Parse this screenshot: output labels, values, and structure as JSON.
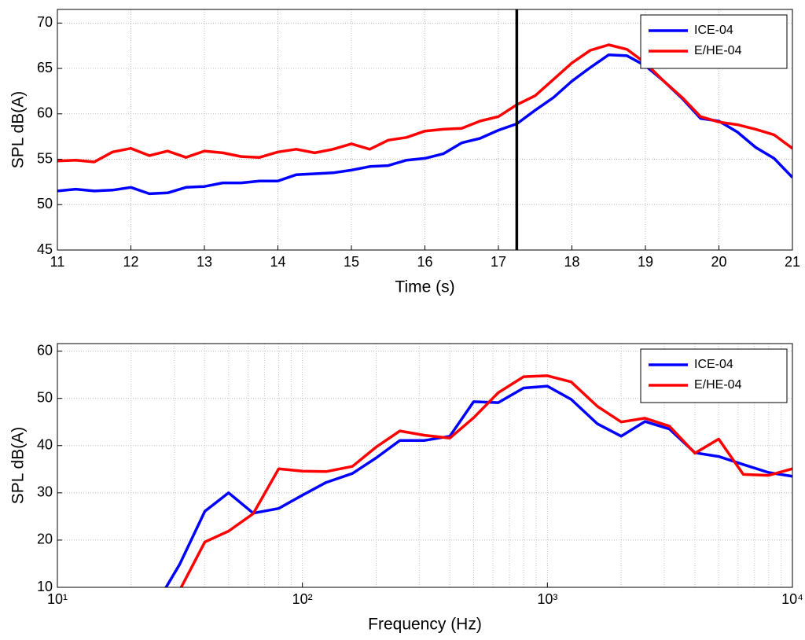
{
  "chart_data": [
    {
      "type": "line",
      "xlabel": "Time (s)",
      "ylabel": "SPL dB(A)",
      "x": [
        11,
        11.25,
        11.5,
        11.75,
        12,
        12.25,
        12.5,
        12.75,
        13,
        13.25,
        13.5,
        13.75,
        14,
        14.25,
        14.5,
        14.75,
        15,
        15.25,
        15.5,
        15.75,
        16,
        16.25,
        16.5,
        16.75,
        17,
        17.25,
        17.5,
        17.75,
        18,
        18.25,
        18.5,
        18.75,
        19,
        19.25,
        19.5,
        19.75,
        20,
        20.25,
        20.5,
        20.75,
        21
      ],
      "series": [
        {
          "name": "ICE-04",
          "color": "#0000ff",
          "values": [
            51.5,
            51.7,
            51.5,
            51.6,
            51.9,
            51.2,
            51.3,
            51.9,
            52.0,
            52.4,
            52.4,
            52.6,
            52.6,
            53.3,
            53.4,
            53.5,
            53.8,
            54.2,
            54.3,
            54.9,
            55.1,
            55.6,
            56.8,
            57.3,
            58.2,
            58.9,
            60.4,
            61.8,
            63.6,
            65.1,
            66.5,
            66.4,
            65.3,
            63.6,
            61.7,
            59.5,
            59.2,
            58.0,
            56.3,
            55.1,
            53.0
          ]
        },
        {
          "name": "E/HE-04",
          "color": "#ff0000",
          "values": [
            54.8,
            54.9,
            54.7,
            55.8,
            56.2,
            55.4,
            55.9,
            55.2,
            55.9,
            55.7,
            55.3,
            55.2,
            55.8,
            56.1,
            55.7,
            56.1,
            56.7,
            56.1,
            57.1,
            57.4,
            58.1,
            58.3,
            58.4,
            59.2,
            59.7,
            61.0,
            62.0,
            63.8,
            65.6,
            67.0,
            67.6,
            67.1,
            65.6,
            63.6,
            61.8,
            59.7,
            59.1,
            58.8,
            58.3,
            57.7,
            56.2
          ]
        }
      ],
      "xlim": [
        11,
        21
      ],
      "xticks": [
        11,
        12,
        13,
        14,
        15,
        16,
        17,
        18,
        19,
        20,
        21
      ],
      "ylim": [
        45,
        71.5
      ],
      "yticks": [
        45,
        50,
        55,
        60,
        65,
        70
      ],
      "log_x": false,
      "grid": true,
      "legend": "upper right",
      "vline": {
        "x": 17.25,
        "color": "#000000"
      }
    },
    {
      "type": "line",
      "xlabel": "Frequency (Hz)",
      "ylabel": "SPL dB(A)",
      "x": [
        25,
        31.5,
        40,
        50,
        63,
        80,
        100,
        125,
        160,
        200,
        250,
        315,
        400,
        500,
        630,
        800,
        1000,
        1250,
        1600,
        2000,
        2500,
        3150,
        4000,
        5000,
        6300,
        8000,
        10000
      ],
      "series": [
        {
          "name": "ICE-04",
          "color": "#0000ff",
          "values": [
            6,
            14.8,
            26.1,
            30,
            25.7,
            26.7,
            29.5,
            32.2,
            34.1,
            37.4,
            41.1,
            41.1,
            42,
            49.3,
            49.1,
            52.2,
            52.6,
            49.8,
            44.6,
            42,
            45.1,
            43.5,
            38.5,
            37.7,
            36,
            34.3,
            33.5
          ]
        },
        {
          "name": "E/HE-04",
          "color": "#ff0000",
          "values": [
            null,
            9.3,
            19.6,
            21.9,
            25.6,
            35.1,
            34.6,
            34.5,
            35.6,
            39.7,
            43.1,
            42.2,
            41.6,
            45.9,
            51.2,
            54.6,
            54.8,
            53.5,
            48.3,
            45,
            45.8,
            44.1,
            38.4,
            41.4,
            33.9,
            33.7,
            35.1
          ]
        }
      ],
      "xlim": [
        10,
        10000
      ],
      "xticks": [
        {
          "value": 10,
          "label": "10¹"
        },
        {
          "value": 100,
          "label": "10²"
        },
        {
          "value": 1000,
          "label": "10³"
        },
        {
          "value": 10000,
          "label": "10⁴"
        }
      ],
      "ylim": [
        10,
        61.6
      ],
      "yticks": [
        10,
        20,
        30,
        40,
        50,
        60
      ],
      "log_x": true,
      "grid": true,
      "legend": "upper right"
    }
  ]
}
